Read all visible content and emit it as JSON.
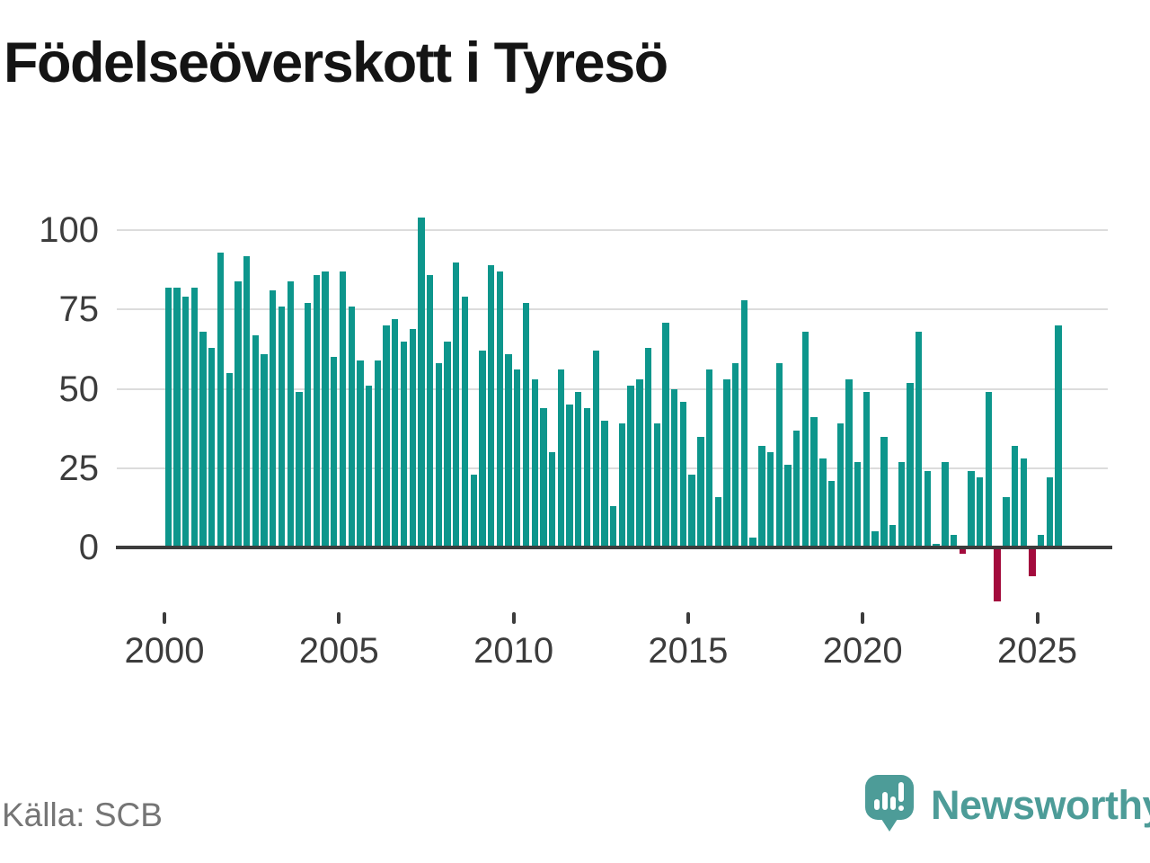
{
  "title": "Födelseöverskott i Tyresö",
  "source_label": "Källa: SCB",
  "brand": {
    "name": "Newsworthy"
  },
  "colors": {
    "positive_bar": "#0D968C",
    "negative_bar": "#A30B3D",
    "brand_teal": "#4D9C98",
    "gridline": "#DCDCDC",
    "axis_line": "#3C3C3C",
    "axis_text": "#3C3C3C",
    "muted_text": "#757575",
    "title_text": "#141414"
  },
  "chart_data": {
    "type": "bar",
    "title": "Födelseöverskott i Tyresö",
    "frequency": "quarterly",
    "period_start": "2000-Q1",
    "period_end": "2025-Q3",
    "x_tick_labels": [
      "2000",
      "2005",
      "2010",
      "2015",
      "2020",
      "2025"
    ],
    "y_ticks": [
      0,
      25,
      50,
      75,
      100
    ],
    "ylim": [
      -22,
      106
    ],
    "grid": "horizontal",
    "legend": "none",
    "series": [
      {
        "name": "Födelseöverskott",
        "values": [
          82,
          82,
          79,
          82,
          68,
          63,
          93,
          55,
          84,
          92,
          67,
          61,
          81,
          76,
          84,
          49,
          77,
          86,
          87,
          60,
          87,
          76,
          59,
          51,
          59,
          70,
          72,
          65,
          69,
          104,
          86,
          58,
          65,
          90,
          79,
          23,
          62,
          89,
          87,
          61,
          56,
          77,
          53,
          44,
          30,
          56,
          45,
          49,
          44,
          62,
          40,
          13,
          39,
          51,
          53,
          63,
          39,
          71,
          50,
          46,
          23,
          35,
          56,
          16,
          53,
          58,
          78,
          3,
          32,
          30,
          58,
          26,
          37,
          68,
          41,
          28,
          21,
          39,
          53,
          27,
          49,
          5,
          35,
          7,
          27,
          52,
          68,
          24,
          1,
          27,
          4,
          -2,
          24,
          22,
          49,
          -17,
          16,
          32,
          28,
          -9,
          4,
          22,
          70
        ]
      }
    ]
  }
}
